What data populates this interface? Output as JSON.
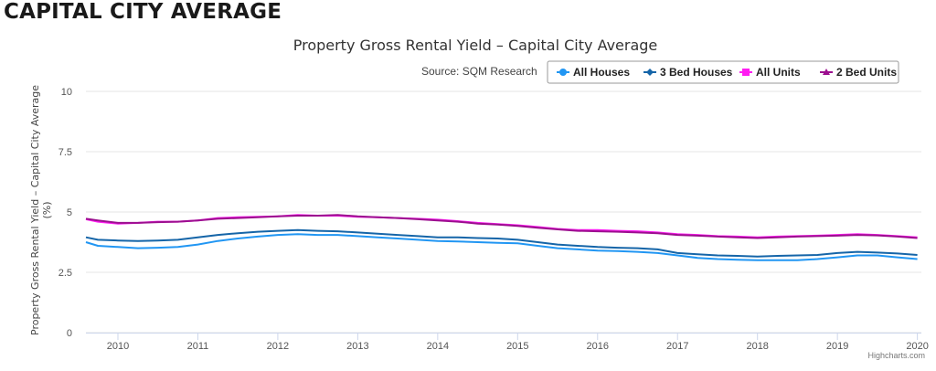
{
  "page": {
    "heading": "CAPITAL CITY AVERAGE"
  },
  "chart_data": {
    "type": "line",
    "title": "Property Gross Rental Yield – Capital City Average",
    "source": "Source: SQM Research",
    "ylabel": "Property Gross Rental Yield – Capital City Average",
    "ylabel_unit": "(%)",
    "ylim": [
      0,
      10
    ],
    "y_ticks": [
      "0",
      "2.5",
      "5",
      "7.5",
      "10"
    ],
    "xlim": [
      2009.6,
      2020.05
    ],
    "x_ticks": [
      "2010",
      "2011",
      "2012",
      "2013",
      "2014",
      "2015",
      "2016",
      "2017",
      "2018",
      "2019",
      "2020"
    ],
    "grid": "horizontal",
    "legend_position": "top-right",
    "credits": "Highcharts.com",
    "series": [
      {
        "name": "All Houses",
        "color": "#2196f3",
        "marker": "circle",
        "x": [
          2009.6,
          2009.75,
          2010,
          2010.25,
          2010.5,
          2010.75,
          2011,
          2011.25,
          2011.5,
          2011.75,
          2012,
          2012.25,
          2012.5,
          2012.75,
          2013,
          2013.25,
          2013.5,
          2013.75,
          2014,
          2014.25,
          2014.5,
          2014.75,
          2015,
          2015.25,
          2015.5,
          2015.75,
          2016,
          2016.25,
          2016.5,
          2016.75,
          2017,
          2017.25,
          2017.5,
          2017.75,
          2018,
          2018.25,
          2018.5,
          2018.75,
          2019,
          2019.25,
          2019.5,
          2019.75,
          2020
        ],
        "values": [
          3.75,
          3.6,
          3.55,
          3.5,
          3.52,
          3.55,
          3.65,
          3.8,
          3.9,
          3.98,
          4.05,
          4.08,
          4.05,
          4.05,
          4.0,
          3.95,
          3.9,
          3.85,
          3.8,
          3.78,
          3.75,
          3.72,
          3.7,
          3.6,
          3.5,
          3.45,
          3.4,
          3.38,
          3.35,
          3.3,
          3.2,
          3.1,
          3.05,
          3.02,
          3.0,
          3.0,
          3.0,
          3.05,
          3.12,
          3.2,
          3.2,
          3.12,
          3.05
        ]
      },
      {
        "name": "3 Bed Houses",
        "color": "#1565a8",
        "marker": "diamond",
        "x": [
          2009.6,
          2009.75,
          2010,
          2010.25,
          2010.5,
          2010.75,
          2011,
          2011.25,
          2011.5,
          2011.75,
          2012,
          2012.25,
          2012.5,
          2012.75,
          2013,
          2013.25,
          2013.5,
          2013.75,
          2014,
          2014.25,
          2014.5,
          2014.75,
          2015,
          2015.25,
          2015.5,
          2015.75,
          2016,
          2016.25,
          2016.5,
          2016.75,
          2017,
          2017.25,
          2017.5,
          2017.75,
          2018,
          2018.25,
          2018.5,
          2018.75,
          2019,
          2019.25,
          2019.5,
          2019.75,
          2020
        ],
        "values": [
          3.95,
          3.85,
          3.82,
          3.8,
          3.82,
          3.85,
          3.95,
          4.05,
          4.12,
          4.18,
          4.22,
          4.25,
          4.22,
          4.2,
          4.15,
          4.1,
          4.05,
          4.0,
          3.95,
          3.95,
          3.92,
          3.9,
          3.85,
          3.75,
          3.65,
          3.6,
          3.55,
          3.52,
          3.5,
          3.45,
          3.3,
          3.25,
          3.2,
          3.18,
          3.15,
          3.18,
          3.2,
          3.22,
          3.3,
          3.35,
          3.32,
          3.28,
          3.22
        ]
      },
      {
        "name": "All Units",
        "color": "#ff1cf2",
        "marker": "square",
        "x": [
          2009.6,
          2009.75,
          2010,
          2010.25,
          2010.5,
          2010.75,
          2011,
          2011.25,
          2011.5,
          2011.75,
          2012,
          2012.25,
          2012.5,
          2012.75,
          2013,
          2013.25,
          2013.5,
          2013.75,
          2014,
          2014.25,
          2014.5,
          2014.75,
          2015,
          2015.25,
          2015.5,
          2015.75,
          2016,
          2016.25,
          2016.5,
          2016.75,
          2017,
          2017.25,
          2017.5,
          2017.75,
          2018,
          2018.25,
          2018.5,
          2018.75,
          2019,
          2019.25,
          2019.5,
          2019.75,
          2020
        ],
        "values": [
          4.7,
          4.6,
          4.52,
          4.55,
          4.6,
          4.6,
          4.65,
          4.75,
          4.78,
          4.8,
          4.82,
          4.88,
          4.85,
          4.85,
          4.8,
          4.78,
          4.75,
          4.72,
          4.68,
          4.62,
          4.55,
          4.5,
          4.45,
          4.38,
          4.3,
          4.25,
          4.25,
          4.22,
          4.2,
          4.15,
          4.08,
          4.05,
          4.0,
          3.98,
          3.95,
          3.98,
          4.0,
          4.02,
          4.05,
          4.08,
          4.05,
          4.0,
          3.95
        ]
      },
      {
        "name": "2 Bed Units",
        "color": "#9c0f8f",
        "marker": "triangle",
        "x": [
          2009.6,
          2009.75,
          2010,
          2010.25,
          2010.5,
          2010.75,
          2011,
          2011.25,
          2011.5,
          2011.75,
          2012,
          2012.25,
          2012.5,
          2012.75,
          2013,
          2013.25,
          2013.5,
          2013.75,
          2014,
          2014.25,
          2014.5,
          2014.75,
          2015,
          2015.25,
          2015.5,
          2015.75,
          2016,
          2016.25,
          2016.5,
          2016.75,
          2017,
          2017.25,
          2017.5,
          2017.75,
          2018,
          2018.25,
          2018.5,
          2018.75,
          2019,
          2019.25,
          2019.5,
          2019.75,
          2020
        ],
        "values": [
          4.72,
          4.65,
          4.55,
          4.55,
          4.58,
          4.6,
          4.65,
          4.72,
          4.75,
          4.78,
          4.82,
          4.85,
          4.85,
          4.88,
          4.82,
          4.78,
          4.75,
          4.7,
          4.65,
          4.6,
          4.52,
          4.48,
          4.42,
          4.35,
          4.28,
          4.22,
          4.2,
          4.18,
          4.15,
          4.12,
          4.05,
          4.02,
          3.98,
          3.95,
          3.92,
          3.95,
          3.98,
          4.0,
          4.02,
          4.05,
          4.03,
          3.98,
          3.92
        ]
      }
    ]
  }
}
